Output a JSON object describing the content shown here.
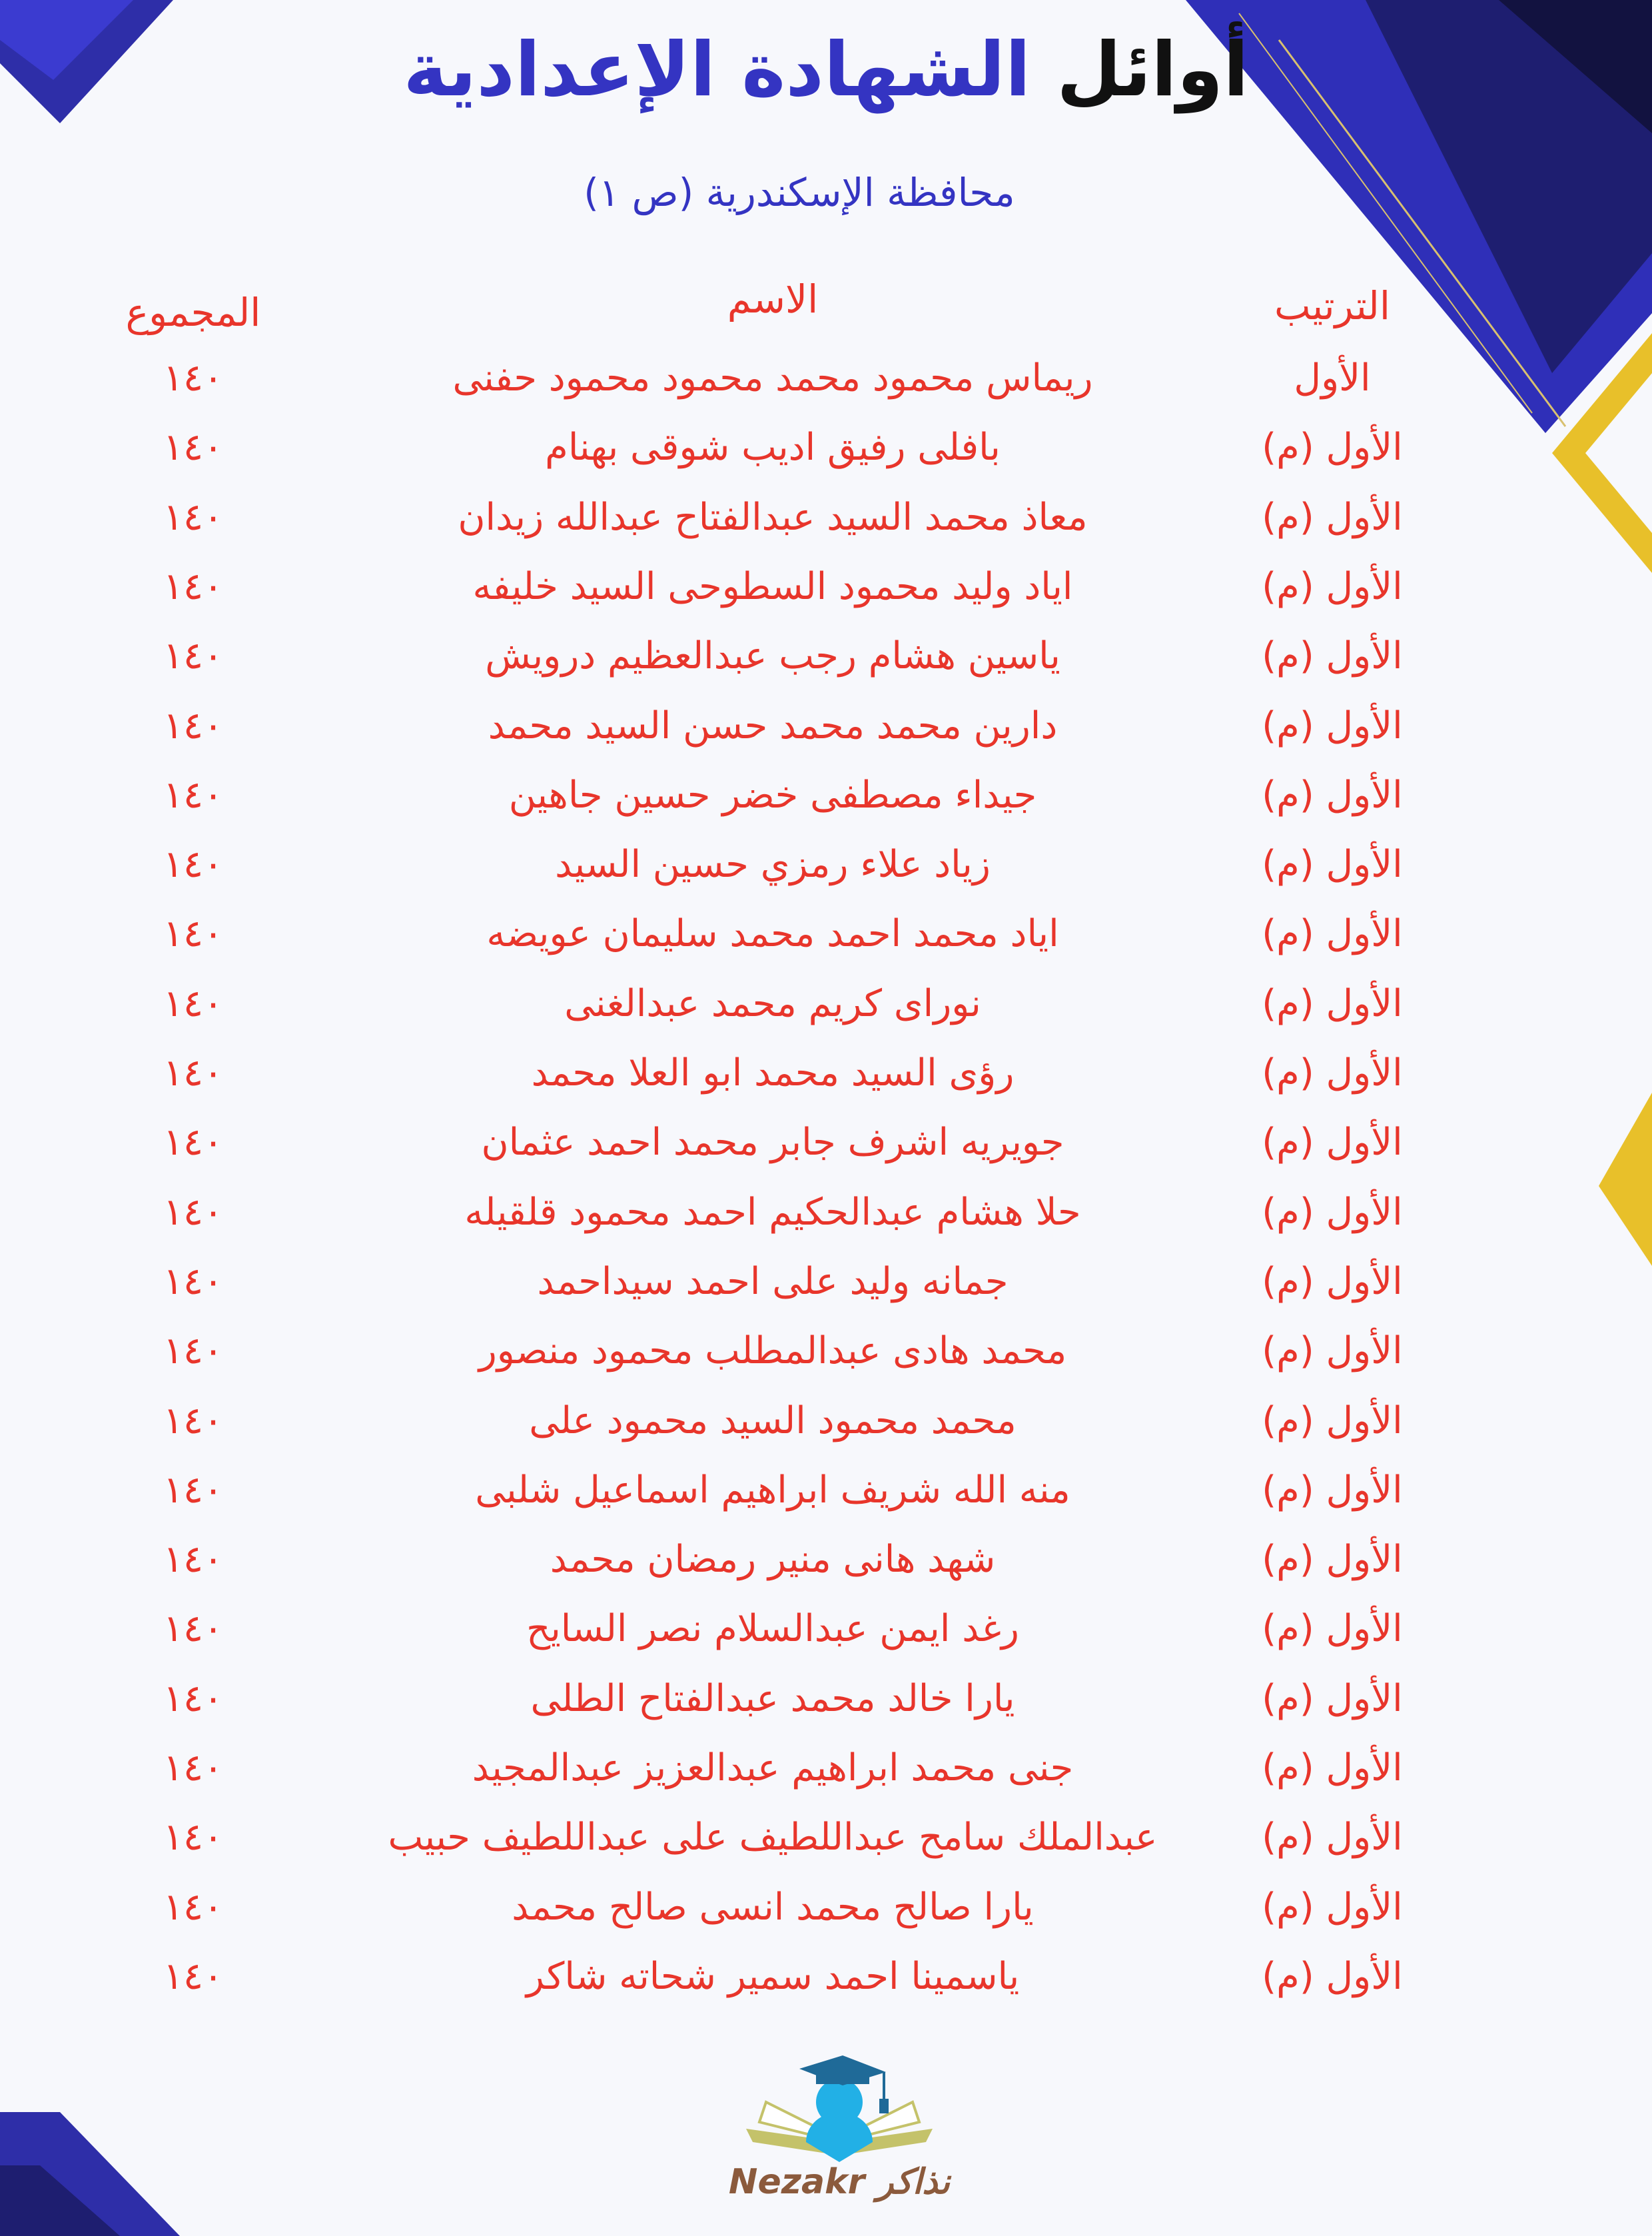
{
  "title": {
    "part1": "أوائل",
    "part2": "الشهادة الإعدادية"
  },
  "subtitle": "محافظة الإسكندرية (ص ١)",
  "headers": {
    "rank": "الترتيب",
    "name": "الاسم",
    "total": "المجموع"
  },
  "colors": {
    "accent_blue": "#3434c2",
    "text_red": "#e8352b",
    "gold": "#e8c02a"
  },
  "rows": [
    {
      "rank": "الأول",
      "name": "ريماس محمود محمد محمود محمود حفنى",
      "total": "١٤٠"
    },
    {
      "rank": "الأول (م)",
      "name": "بافلى رفيق اديب شوقى بهنام",
      "total": "١٤٠"
    },
    {
      "rank": "الأول (م)",
      "name": "معاذ محمد السيد عبدالفتاح عبدالله زيدان",
      "total": "١٤٠"
    },
    {
      "rank": "الأول (م)",
      "name": "اياد وليد محمود السطوحى السيد خليفه",
      "total": "١٤٠"
    },
    {
      "rank": "الأول (م)",
      "name": "ياسين هشام رجب عبدالعظيم درويش",
      "total": "١٤٠"
    },
    {
      "rank": "الأول (م)",
      "name": "دارين محمد محمد حسن السيد محمد",
      "total": "١٤٠"
    },
    {
      "rank": "الأول (م)",
      "name": "جيداء مصطفى خضر حسين جاهين",
      "total": "١٤٠"
    },
    {
      "rank": "الأول (م)",
      "name": "زياد علاء رمزي حسين السيد",
      "total": "١٤٠"
    },
    {
      "rank": "الأول (م)",
      "name": "اياد محمد احمد محمد سليمان عويضه",
      "total": "١٤٠"
    },
    {
      "rank": "الأول (م)",
      "name": "نوراى كريم محمد عبدالغنى",
      "total": "١٤٠"
    },
    {
      "rank": "الأول (م)",
      "name": "رؤى السيد محمد ابو العلا محمد",
      "total": "١٤٠"
    },
    {
      "rank": "الأول (م)",
      "name": "جويريه اشرف جابر محمد احمد عثمان",
      "total": "١٤٠"
    },
    {
      "rank": "الأول (م)",
      "name": "حلا هشام عبدالحكيم احمد محمود قلقيله",
      "total": "١٤٠"
    },
    {
      "rank": "الأول (م)",
      "name": "جمانه وليد على احمد سيداحمد",
      "total": "١٤٠"
    },
    {
      "rank": "الأول (م)",
      "name": "محمد هادى عبدالمطلب محمود منصور",
      "total": "١٤٠"
    },
    {
      "rank": "الأول (م)",
      "name": "محمد محمود السيد محمود على",
      "total": "١٤٠"
    },
    {
      "rank": "الأول (م)",
      "name": "منه الله شريف ابراهيم اسماعيل شلبى",
      "total": "١٤٠"
    },
    {
      "rank": "الأول (م)",
      "name": "شهد هانى منير رمضان محمد",
      "total": "١٤٠"
    },
    {
      "rank": "الأول (م)",
      "name": "رغد ايمن عبدالسلام نصر السايح",
      "total": "١٤٠"
    },
    {
      "rank": "الأول (م)",
      "name": "يارا خالد محمد عبدالفتاح الطلى",
      "total": "١٤٠"
    },
    {
      "rank": "الأول (م)",
      "name": "جنى محمد ابراهيم عبدالعزيز عبدالمجيد",
      "total": "١٤٠"
    },
    {
      "rank": "الأول (م)",
      "name": "عبدالملك سامح عبداللطيف على عبداللطيف حبيب",
      "total": "١٤٠"
    },
    {
      "rank": "الأول (م)",
      "name": "يارا صالح محمد انسى صالح محمد",
      "total": "١٤٠"
    },
    {
      "rank": "الأول (م)",
      "name": "ياسمينا احمد سمير شحاته شاكر",
      "total": "١٤٠"
    }
  ],
  "logo": {
    "text": "Nezakr نذاكر"
  }
}
